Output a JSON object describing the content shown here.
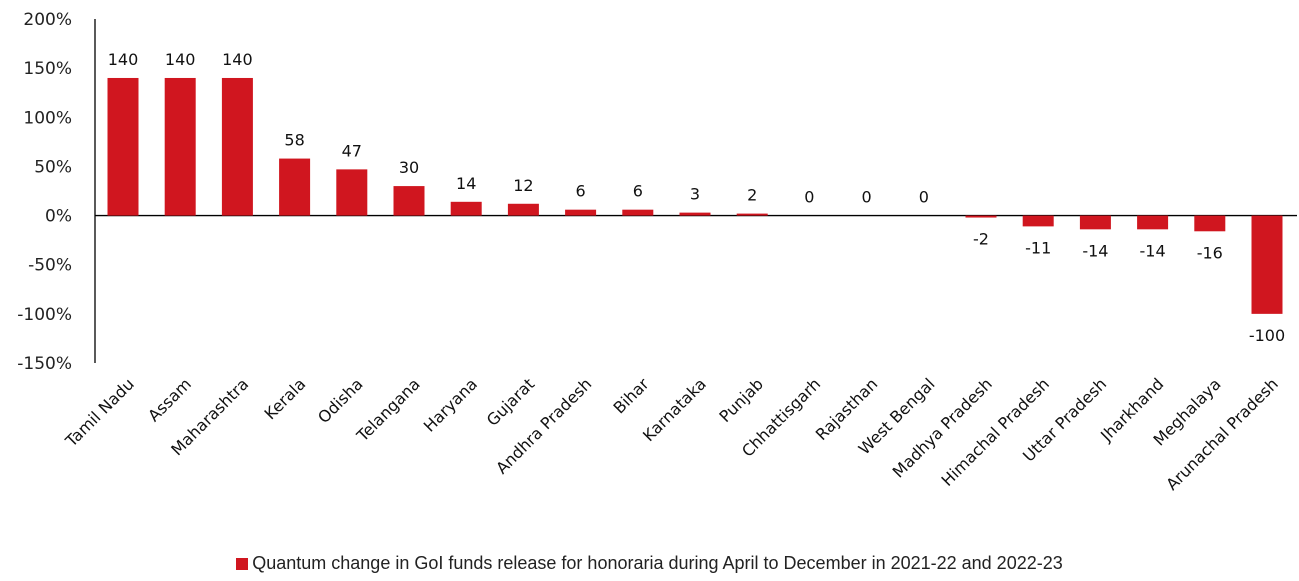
{
  "chart_data": {
    "type": "bar",
    "categories": [
      "Tamil Nadu",
      "Assam",
      "Maharashtra",
      "Kerala",
      "Odisha",
      "Telangana",
      "Haryana",
      "Gujarat",
      "Andhra Pradesh",
      "Bihar",
      "Karnataka",
      "Punjab",
      "Chhattisgarh",
      "Rajasthan",
      "West Bengal",
      "Madhya Pradesh",
      "Himachal Pradesh",
      "Uttar Pradesh",
      "Jharkhand",
      "Meghalaya",
      "Arunachal Pradesh"
    ],
    "series": [
      {
        "name": "Quantum change in GoI funds release for honoraria during April to December in 2021-22 and 2022-23",
        "values": [
          140,
          140,
          140,
          58,
          47,
          30,
          14,
          12,
          6,
          6,
          3,
          2,
          0,
          0,
          0,
          -2,
          -11,
          -14,
          -14,
          -16,
          -100
        ],
        "data_labels": [
          "140",
          "140",
          "140",
          "58",
          "47",
          "30",
          "14",
          "12",
          "6",
          "6",
          "3",
          "2",
          "0",
          "0",
          "0",
          "-2",
          "-11",
          "-14",
          "-14",
          "-16",
          "-100"
        ]
      }
    ],
    "ylim": [
      -150,
      200
    ],
    "yticks": [
      200,
      150,
      100,
      50,
      0,
      -50,
      -100,
      -150
    ],
    "ytick_labels": [
      "200%",
      "150%",
      "100%",
      "50%",
      "0%",
      "-50%",
      "-100%",
      "-150%"
    ],
    "bar_color": "#D0161F",
    "legend_position": "bottom",
    "grid": false
  }
}
